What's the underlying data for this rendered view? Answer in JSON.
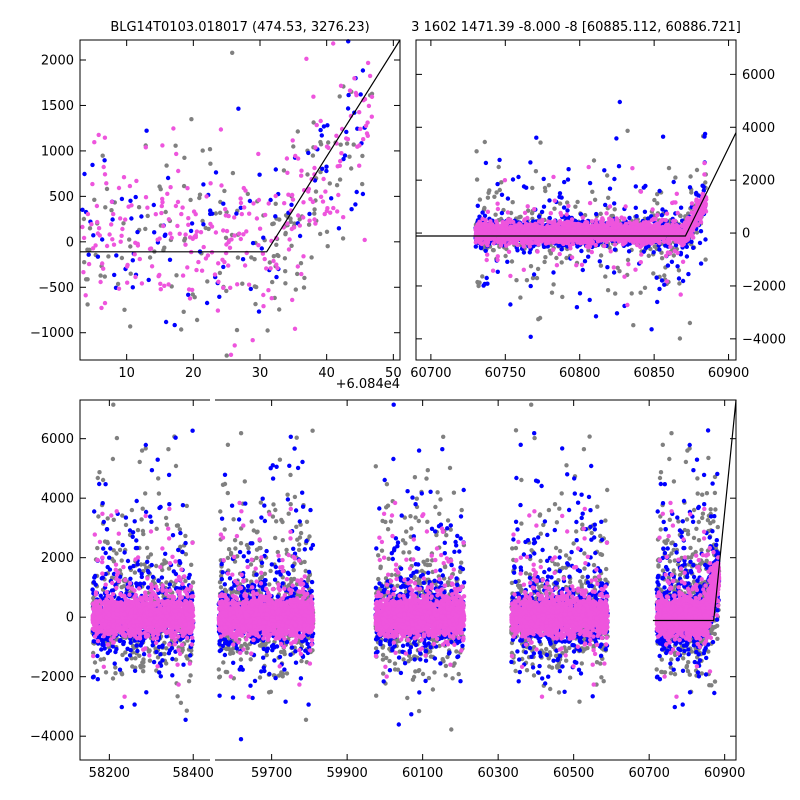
{
  "chart_data": [
    {
      "panel": "top-left",
      "type": "scatter",
      "title": "BLG14T0103.018017 (474.53, 3276.23)",
      "xlim": [
        3,
        51
      ],
      "ylim": [
        -1300,
        2220
      ],
      "x_offset_label": "+6.084e4",
      "xticks": [
        10,
        20,
        30,
        40,
        50
      ],
      "yticks": [
        -1000,
        -500,
        0,
        500,
        1000,
        1500,
        2000
      ],
      "yaxis_side": "left",
      "model_line": [
        [
          3,
          -110
        ],
        [
          31,
          -110
        ],
        [
          51,
          2220
        ]
      ],
      "series": [
        {
          "color": "#808080",
          "n": 180,
          "xrange": [
            3,
            47
          ],
          "core_sd": 400,
          "tail": 0.25,
          "tail_sd": 900
        },
        {
          "color": "#0000ff",
          "n": 110,
          "xrange": [
            3,
            47
          ],
          "core_sd": 380,
          "tail": 0.25,
          "tail_sd": 900
        },
        {
          "color": "#ee55dd",
          "n": 280,
          "xrange": [
            3,
            47
          ],
          "core_sd": 380,
          "tail": 0.2,
          "tail_sd": 800
        }
      ]
    },
    {
      "panel": "top-right",
      "type": "scatter",
      "title": "3 1602 1471.39 -8.000 -8 [60885.112, 60886.721]",
      "xlim": [
        60690,
        60905
      ],
      "ylim": [
        -4800,
        7300
      ],
      "xticks": [
        60700,
        60750,
        60800,
        60850,
        60900
      ],
      "yticks": [
        -4000,
        -2000,
        0,
        2000,
        4000,
        6000
      ],
      "yaxis_side": "right",
      "model_line": [
        [
          60690,
          -110
        ],
        [
          60871,
          -110
        ],
        [
          60905,
          3800
        ]
      ],
      "series": [
        {
          "color": "#808080",
          "n": 900,
          "xrange": [
            60730,
            60885
          ],
          "core_sd": 300,
          "tail": 0.2,
          "tail_sd": 1500
        },
        {
          "color": "#0000ff",
          "n": 900,
          "xrange": [
            60730,
            60885
          ],
          "core_sd": 260,
          "tail": 0.18,
          "tail_sd": 1500
        },
        {
          "color": "#ee55dd",
          "n": 2400,
          "xrange": [
            60730,
            60885
          ],
          "core_sd": 180,
          "tail": 0.05,
          "tail_sd": 900
        }
      ]
    },
    {
      "panel": "bottom",
      "type": "scatter",
      "title": "",
      "ylim": [
        -4800,
        7300
      ],
      "yticks": [
        -4000,
        -2000,
        0,
        2000,
        4000,
        6000
      ],
      "yaxis_side": "left",
      "segments": [
        {
          "xlim": [
            58130,
            58440
          ],
          "xticks": [
            58200,
            58400
          ]
        },
        {
          "xlim": [
            59550,
            60930
          ],
          "xticks": [
            59700,
            59900,
            60100,
            60300,
            60500,
            60700,
            60900
          ]
        }
      ],
      "seasons": [
        {
          "segment": 0,
          "xrange": [
            58160,
            58400
          ]
        },
        {
          "segment": 1,
          "xrange": [
            59560,
            59810
          ]
        },
        {
          "segment": 1,
          "xrange": [
            59975,
            60210
          ]
        },
        {
          "segment": 1,
          "xrange": [
            60335,
            60590
          ]
        },
        {
          "segment": 1,
          "xrange": [
            60720,
            60885
          ]
        }
      ],
      "model_line": [
        [
          60710,
          -110
        ],
        [
          60871,
          -110
        ],
        [
          60930,
          7300
        ]
      ],
      "series": [
        {
          "color": "#808080",
          "n_per_season": 600,
          "core_sd": 700,
          "tail": 0.3,
          "tail_sd": 2500
        },
        {
          "color": "#0000ff",
          "n_per_season": 550,
          "core_sd": 600,
          "tail": 0.25,
          "tail_sd": 2500
        },
        {
          "color": "#ee55dd",
          "n_per_season": 1600,
          "core_sd": 300,
          "tail": 0.08,
          "tail_sd": 1500
        }
      ]
    }
  ]
}
